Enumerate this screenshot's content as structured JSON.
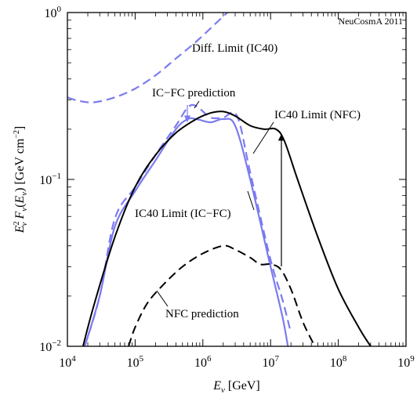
{
  "chart_data": {
    "type": "line",
    "credit": "NeuCosmA 2011",
    "xlabel": "E_ν [GeV]",
    "ylabel": "E_ν² F_ν(E_ν) [GeV cm⁻²]",
    "xscale": "log",
    "yscale": "log",
    "xlim": [
      10000,
      1000000000
    ],
    "ylim": [
      0.01,
      1
    ],
    "x_ticks": [
      {
        "value": 10000,
        "base": "10",
        "exp": "4"
      },
      {
        "value": 100000,
        "base": "10",
        "exp": "5"
      },
      {
        "value": 1000000,
        "base": "10",
        "exp": "6"
      },
      {
        "value": 10000000,
        "base": "10",
        "exp": "7"
      },
      {
        "value": 100000000,
        "base": "10",
        "exp": "8"
      },
      {
        "value": 1000000000,
        "base": "10",
        "exp": "9"
      }
    ],
    "y_ticks": [
      {
        "value": 0.01,
        "base": "10",
        "exp": "−2"
      },
      {
        "value": 0.1,
        "base": "10",
        "exp": "−1"
      },
      {
        "value": 1,
        "base": "10",
        "exp": "0"
      }
    ],
    "grid": false,
    "series": [
      {
        "name": "Diff. Limit (IC40)",
        "color": "#7b7bef",
        "style": "dashed",
        "x": [
          10000,
          15000,
          25000,
          50000,
          100000,
          200000,
          400000,
          800000,
          1500000,
          2300000
        ],
        "y": [
          0.31,
          0.295,
          0.29,
          0.31,
          0.35,
          0.42,
          0.53,
          0.67,
          0.85,
          1.0
        ]
      },
      {
        "name": "IC−FC prediction",
        "color": "#7b7bef",
        "style": "dashed",
        "x": [
          18000,
          30000,
          50000,
          100000,
          200000,
          400000,
          600000,
          800000,
          1300000,
          2000000,
          3200000,
          5000000,
          10000000,
          15000000,
          20000000
        ],
        "y": [
          0.01,
          0.02,
          0.058,
          0.09,
          0.14,
          0.21,
          0.27,
          0.275,
          0.235,
          0.235,
          0.24,
          0.11,
          0.033,
          0.019,
          0.012
        ]
      },
      {
        "name": "IC40 Limit (IC−FC)",
        "color": "#7b7bef",
        "style": "solid",
        "x": [
          18000,
          30000,
          50000,
          100000,
          200000,
          400000,
          600000,
          800000,
          1300000,
          2000000,
          3000000,
          5000000,
          10000000,
          15000000,
          18000000
        ],
        "y": [
          0.01,
          0.02,
          0.052,
          0.085,
          0.13,
          0.2,
          0.23,
          0.23,
          0.22,
          0.23,
          0.21,
          0.1,
          0.03,
          0.015,
          0.01
        ]
      },
      {
        "name": "IC40 Limit (NFC)",
        "color": "#000000",
        "style": "solid",
        "x": [
          17000,
          25000,
          50000,
          100000,
          200000,
          400000,
          800000,
          1300000,
          2000000,
          3000000,
          5000000,
          8000000,
          12000000,
          16000000,
          25000000,
          50000000,
          100000000,
          200000000,
          300000000
        ],
        "y": [
          0.01,
          0.018,
          0.045,
          0.09,
          0.14,
          0.19,
          0.23,
          0.25,
          0.255,
          0.24,
          0.21,
          0.2,
          0.2,
          0.17,
          0.1,
          0.045,
          0.022,
          0.013,
          0.01
        ]
      },
      {
        "name": "NFC prediction",
        "color": "#000000",
        "style": "dashed",
        "x": [
          80000,
          100000,
          150000,
          250000,
          500000,
          1000000,
          2000000,
          3000000,
          5000000,
          7000000,
          10000000,
          14000000,
          20000000,
          30000000,
          45000000
        ],
        "y": [
          0.01,
          0.013,
          0.018,
          0.023,
          0.03,
          0.036,
          0.04,
          0.038,
          0.034,
          0.031,
          0.031,
          0.029,
          0.022,
          0.014,
          0.01
        ]
      }
    ],
    "annotations": [
      {
        "text": "Diff. Limit (IC40)"
      },
      {
        "text": "IC−FC prediction"
      },
      {
        "text": "IC40 Limit (NFC)"
      },
      {
        "text": "IC40 Limit (IC−FC)"
      },
      {
        "text": "NFC prediction"
      }
    ]
  }
}
